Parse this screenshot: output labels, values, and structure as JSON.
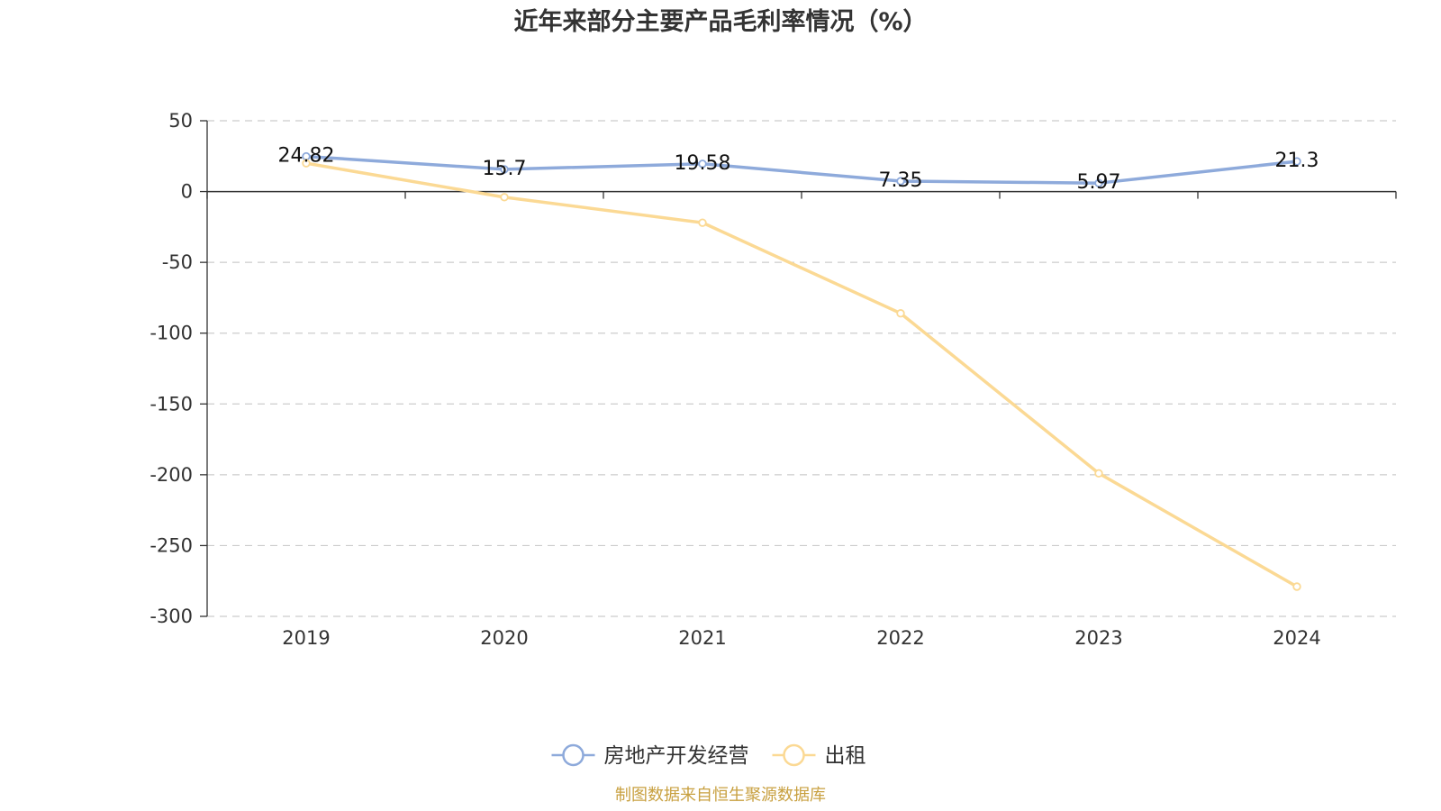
{
  "chart_data": {
    "type": "line",
    "title": "近年来部分主要产品毛利率情况（%）",
    "categories": [
      "2019",
      "2020",
      "2021",
      "2022",
      "2023",
      "2024"
    ],
    "ylim": [
      -300,
      50
    ],
    "yticks": [
      "50",
      "0",
      "-50",
      "-100",
      "-150",
      "-200",
      "-250",
      "-300"
    ],
    "ytick_values": [
      50,
      0,
      -50,
      -100,
      -150,
      -200,
      -250,
      -300
    ],
    "grid": true,
    "legend_position": "bottom",
    "series": [
      {
        "name": "房地产开发经营",
        "color": "#8eaadb",
        "values": [
          24.82,
          15.7,
          19.58,
          7.35,
          5.97,
          21.3
        ],
        "labels": [
          "24.82",
          "15.7",
          "19.58",
          "7.35",
          "5.97",
          "21.3"
        ]
      },
      {
        "name": "出租",
        "color": "#fbd994",
        "values": [
          20,
          -4,
          -22,
          -86,
          -199,
          -279
        ]
      }
    ]
  },
  "source": {
    "text": "制图数据来自恒生聚源数据库",
    "color": "#c8a040"
  }
}
